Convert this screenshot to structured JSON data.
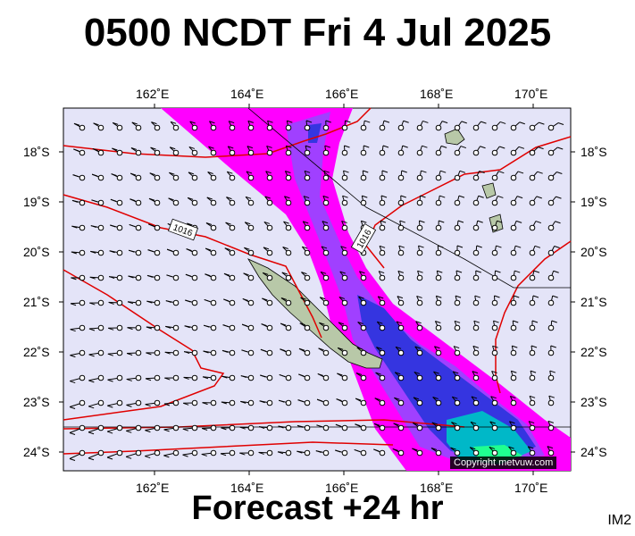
{
  "header": {
    "title": "0500 NCDT Fri 4 Jul 2025"
  },
  "footer": {
    "subtitle": "Forecast +24 hr",
    "model_id": "IM2"
  },
  "map": {
    "lon_ticks": [
      "162˚E",
      "164˚E",
      "166˚E",
      "168˚E",
      "170˚E"
    ],
    "lat_ticks": [
      "18˚S",
      "19˚S",
      "20˚S",
      "21˚S",
      "22˚S",
      "23˚S",
      "24˚S"
    ],
    "isobar_labels": [
      "1016",
      "1016"
    ],
    "copyright": "Copyright metvuw.com",
    "colors": {
      "background": "#e4e4f8",
      "rain_light": "#ff00ff",
      "rain_medium": "#9a40ff",
      "rain_heavy": "#3030e0",
      "rain_very_heavy": "#00c8c8",
      "rain_extreme": "#00ff80",
      "isobar": "#e00000",
      "land": "#b8c8a8"
    }
  }
}
